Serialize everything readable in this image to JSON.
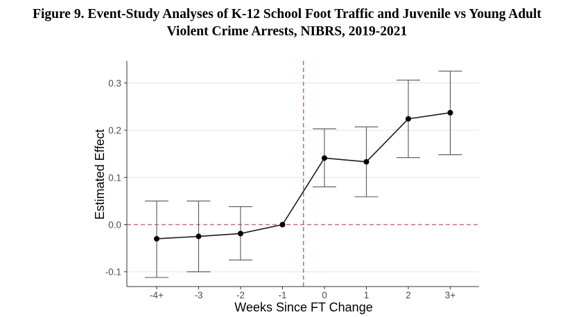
{
  "title_lines": [
    "Figure 9. Event-Study Analyses of K-12 School Foot Traffic and Juvenile vs Young Adult",
    "Violent Crime Arrests, NIBRS, 2019-2021"
  ],
  "chart_data": {
    "type": "line",
    "title": "Figure 9. Event-Study Analyses of K-12 School Foot Traffic and Juvenile vs Young Adult Violent Crime Arrests, NIBRS, 2019-2021",
    "xlabel": "Weeks Since FT Change",
    "ylabel": "Estimated Effect",
    "categories": [
      "-4+",
      "-3",
      "-2",
      "-1",
      "0",
      "1",
      "2",
      "3+"
    ],
    "series": [
      {
        "name": "Estimated Effect",
        "values": [
          -0.03,
          -0.025,
          -0.019,
          0.0,
          0.141,
          0.133,
          0.224,
          0.237
        ],
        "ci_low": [
          -0.112,
          -0.1,
          -0.075,
          0.0,
          0.08,
          0.059,
          0.142,
          0.148
        ],
        "ci_high": [
          0.05,
          0.05,
          0.038,
          0.0,
          0.203,
          0.207,
          0.306,
          0.325
        ]
      }
    ],
    "yticks": [
      -0.1,
      0.0,
      0.1,
      0.2,
      0.3
    ],
    "ytick_labels": [
      "-0.1",
      "0.0",
      "0.1",
      "0.2",
      "0.3"
    ],
    "ylim": [
      -0.133,
      0.345
    ],
    "reference_lines": {
      "horizontal_y": 0.0,
      "vertical_between": [
        "-1",
        "0"
      ],
      "style": "dashed",
      "color": "#e0607e"
    },
    "grid": true,
    "legend": "none"
  },
  "colors": {
    "gridline": "#dceeee",
    "reference": "#e0607e",
    "line": "#1a1a1a",
    "errorbar": "#555555",
    "point": "#000000",
    "axis": "#333333"
  }
}
